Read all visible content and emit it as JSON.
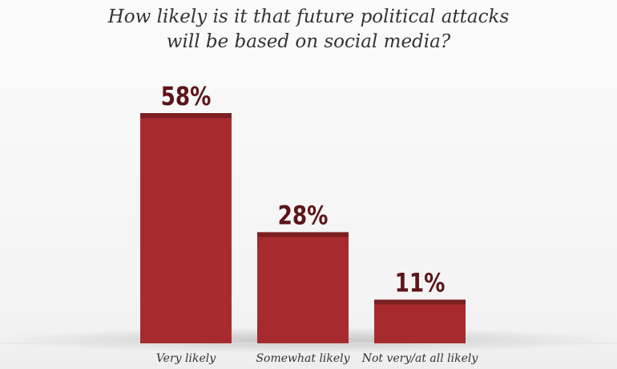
{
  "chart_data": {
    "type": "bar",
    "title_lines": [
      "How likely is it that future political attacks",
      "will be based on social media?"
    ],
    "categories": [
      "Very likely",
      "Somewhat likely",
      "Not very/at all likely"
    ],
    "values": [
      58,
      28,
      11
    ],
    "value_labels": [
      "58%",
      "28%",
      "11%"
    ],
    "ylim": [
      0,
      60
    ],
    "grid": false,
    "legend": "none",
    "colors": {
      "bar": "#a72b2e",
      "bar_cap": "#7a1f22",
      "value_label": "#5c1518",
      "category_label": "#333333"
    }
  }
}
